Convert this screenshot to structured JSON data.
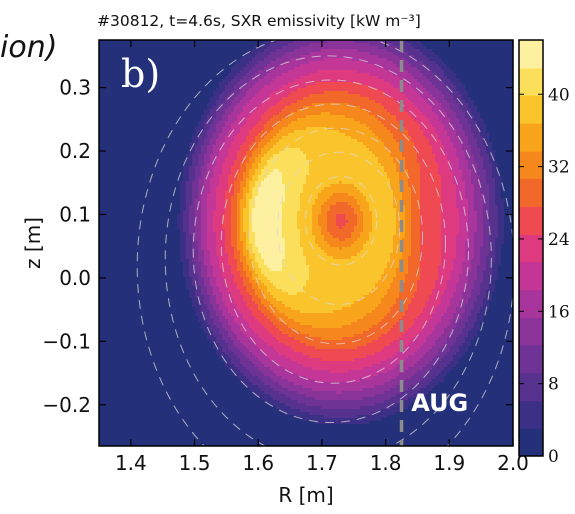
{
  "fragment_text": "ion)",
  "chart_data": {
    "type": "heatmap",
    "title": "#30812, t=4.6s, SXR emissivity [kW m⁻³]",
    "panel_label": "b)",
    "xlabel": "R [m]",
    "ylabel": "z [m]",
    "xlim": [
      1.35,
      2.0
    ],
    "ylim": [
      -0.265,
      0.375
    ],
    "x_ticks": [
      1.4,
      1.5,
      1.6,
      1.7,
      1.8,
      1.9,
      2.0
    ],
    "x_tick_labels": [
      "1.4",
      "1.5",
      "1.6",
      "1.7",
      "1.8",
      "1.9",
      "2.0"
    ],
    "y_ticks": [
      0.3,
      0.2,
      0.1,
      0.0,
      -0.1,
      -0.2
    ],
    "y_tick_labels": [
      "0.3",
      "0.2",
      "0.1",
      "0.0",
      "−0.1",
      "−0.2"
    ],
    "colorbar": {
      "min": 0,
      "max": 46,
      "ticks": [
        0,
        8,
        16,
        24,
        32,
        40
      ],
      "tick_labels": [
        "0",
        "8",
        "16",
        "24",
        "32",
        "40"
      ],
      "levels": [
        0,
        3.1,
        6.1,
        9.2,
        12.3,
        15.3,
        18.4,
        21.5,
        24.5,
        27.6,
        30.7,
        33.7,
        36.8,
        39.9,
        42.9,
        46
      ],
      "colors": [
        "#25307a",
        "#3c2f86",
        "#56318e",
        "#6f3395",
        "#8a349a",
        "#a8359c",
        "#c53796",
        "#de3a7f",
        "#ef4a52",
        "#f2672a",
        "#f5871c",
        "#f8a51b",
        "#fac52c",
        "#fbdf5a",
        "#fdf0a0",
        "#fffbe2"
      ]
    },
    "features": {
      "plasma_center": [
        1.73,
        0.09
      ],
      "core_peak_value": 24,
      "crescent_peak_value": 46,
      "crescent_region_R": [
        1.55,
        1.7
      ],
      "crescent_region_z": [
        -0.05,
        0.3
      ],
      "outer_edge_value": 0
    },
    "annotations": [
      {
        "type": "vertical_dashed_line",
        "x": 1.825,
        "color": "#8c8c8c"
      },
      {
        "type": "text",
        "text": "AUG",
        "x": 1.885,
        "y": -0.21
      }
    ]
  }
}
